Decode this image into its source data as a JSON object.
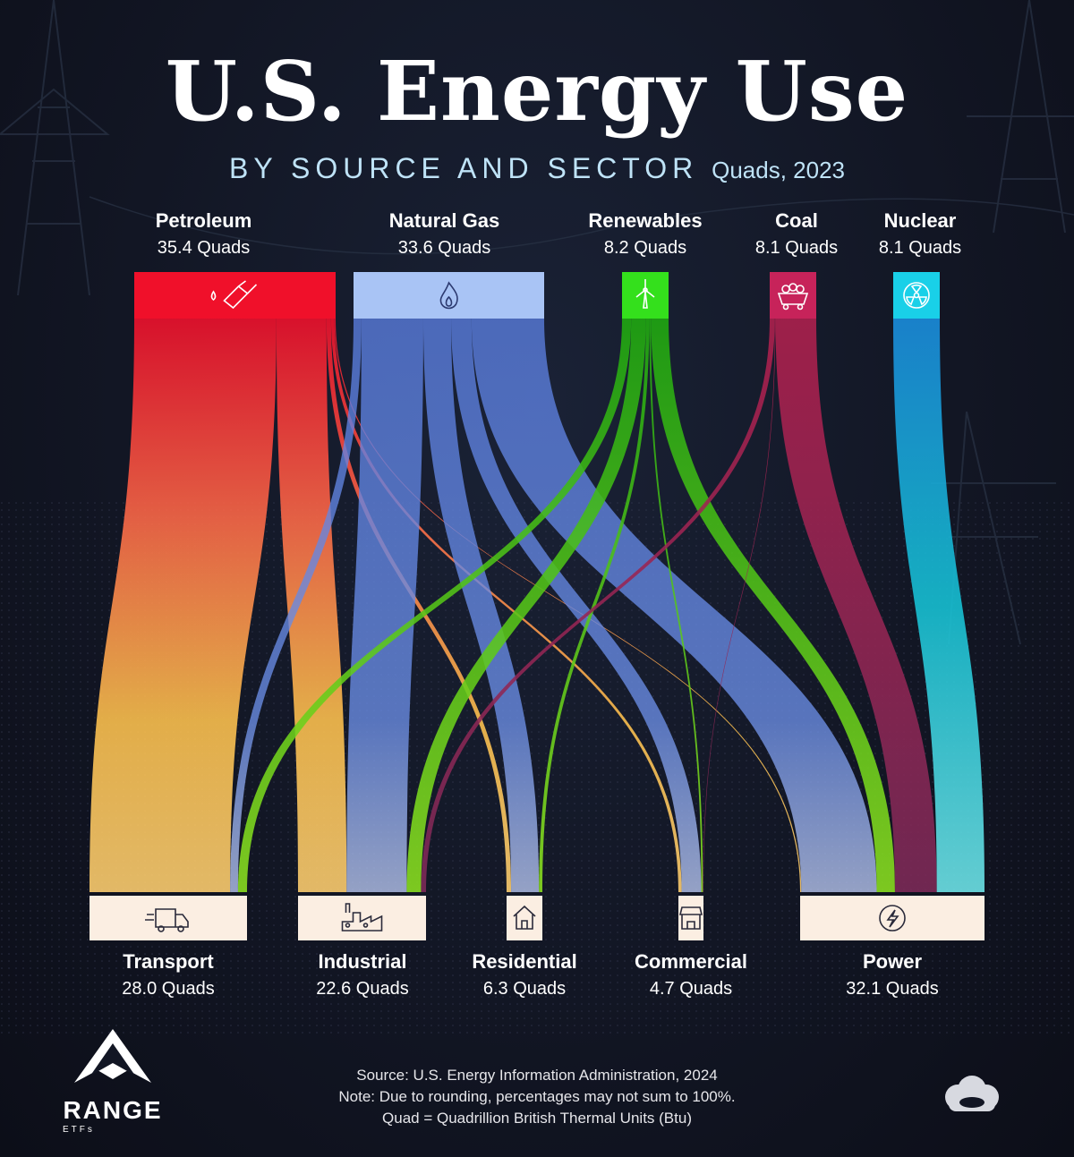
{
  "title": "U.S. Energy Use",
  "subtitle": "BY SOURCE AND SECTOR",
  "subtitle_units": "Quads, 2023",
  "chart_data": {
    "type": "sankey",
    "unit": "Quads",
    "sources": [
      {
        "id": "petroleum",
        "name": "Petroleum",
        "value_text": "35.4 Quads",
        "value": 35.4,
        "color": "#f0102a",
        "icon": "fuel-pump-icon"
      },
      {
        "id": "natgas",
        "name": "Natural Gas",
        "value_text": "33.6 Quads",
        "value": 33.6,
        "color": "#a9c4f5",
        "icon": "flame-icon"
      },
      {
        "id": "renew",
        "name": "Renewables",
        "value_text": "8.2 Quads",
        "value": 8.2,
        "color": "#34e01c",
        "icon": "wind-turbine-icon"
      },
      {
        "id": "coal",
        "name": "Coal",
        "value_text": "8.1 Quads",
        "value": 8.1,
        "color": "#c7235a",
        "icon": "coal-cart-icon"
      },
      {
        "id": "nuclear",
        "name": "Nuclear",
        "value_text": "8.1 Quads",
        "value": 8.1,
        "color": "#19d0e8",
        "icon": "radiation-icon"
      }
    ],
    "sectors": [
      {
        "id": "transport",
        "name": "Transport",
        "value_text": "28.0 Quads",
        "value": 28.0,
        "icon": "delivery-truck-icon"
      },
      {
        "id": "industrial",
        "name": "Industrial",
        "value_text": "22.6 Quads",
        "value": 22.6,
        "icon": "factory-icon"
      },
      {
        "id": "residential",
        "name": "Residential",
        "value_text": "6.3 Quads",
        "value": 6.3,
        "icon": "house-icon"
      },
      {
        "id": "commercial",
        "name": "Commercial",
        "value_text": "4.7 Quads",
        "value": 4.7,
        "icon": "storefront-icon"
      },
      {
        "id": "power",
        "name": "Power",
        "value_text": "32.1 Quads",
        "value": 32.1,
        "icon": "lightning-bolt-icon"
      }
    ],
    "flows": [
      {
        "source": "petroleum",
        "target": "transport",
        "value": 25.0
      },
      {
        "source": "petroleum",
        "target": "industrial",
        "value": 8.8
      },
      {
        "source": "petroleum",
        "target": "residential",
        "value": 0.8
      },
      {
        "source": "petroleum",
        "target": "commercial",
        "value": 0.6
      },
      {
        "source": "petroleum",
        "target": "power",
        "value": 0.2
      },
      {
        "source": "natgas",
        "target": "transport",
        "value": 1.4
      },
      {
        "source": "natgas",
        "target": "industrial",
        "value": 10.9
      },
      {
        "source": "natgas",
        "target": "residential",
        "value": 4.9
      },
      {
        "source": "natgas",
        "target": "commercial",
        "value": 3.6
      },
      {
        "source": "natgas",
        "target": "power",
        "value": 12.8
      },
      {
        "source": "renew",
        "target": "transport",
        "value": 1.6
      },
      {
        "source": "renew",
        "target": "industrial",
        "value": 2.6
      },
      {
        "source": "renew",
        "target": "residential",
        "value": 0.6
      },
      {
        "source": "renew",
        "target": "commercial",
        "value": 0.3
      },
      {
        "source": "renew",
        "target": "power",
        "value": 3.1
      },
      {
        "source": "coal",
        "target": "industrial",
        "value": 0.9
      },
      {
        "source": "coal",
        "target": "commercial",
        "value": 0.1
      },
      {
        "source": "coal",
        "target": "power",
        "value": 7.1
      },
      {
        "source": "nuclear",
        "target": "power",
        "value": 8.1
      }
    ]
  },
  "footer": {
    "line1": "Source: U.S. Energy Information Administration, 2024",
    "line2": "Note: Due to rounding, percentages may not sum to 100%.",
    "line3": "Quad = Quadrillion British Thermal Units (Btu)"
  },
  "brand": {
    "name": "RANGE",
    "sub": "ETFs"
  }
}
